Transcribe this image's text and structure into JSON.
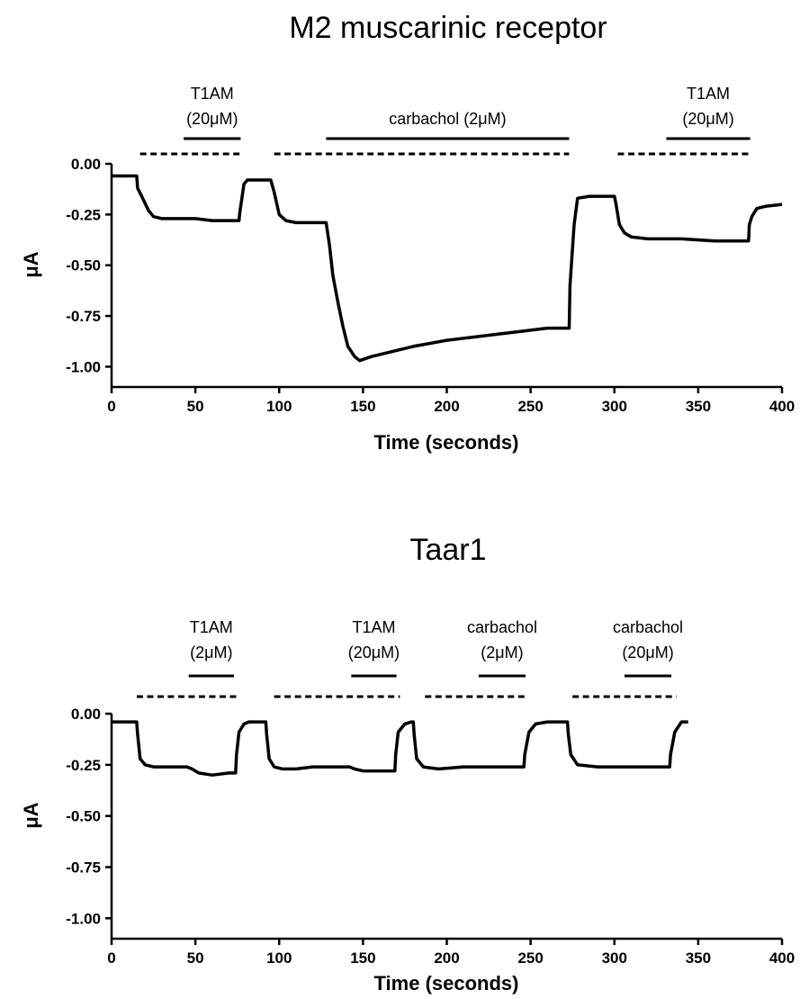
{
  "chart_data": [
    {
      "type": "line",
      "title": "M2 muscarinic receptor",
      "xlabel": "Time (seconds)",
      "ylabel": "μA",
      "xlim": [
        0,
        400
      ],
      "ylim": [
        -1.1,
        0.0
      ],
      "xticks": [
        "0",
        "50",
        "100",
        "150",
        "200",
        "250",
        "300",
        "350",
        "400"
      ],
      "yticks": [
        "0.00",
        "-0.25",
        "-0.50",
        "-0.75",
        "-1.00"
      ],
      "grid": false,
      "annotations": [
        {
          "line1": "T1AM",
          "line2": "(20μM)",
          "dashed": [
            17,
            77
          ],
          "solid": [
            43,
            77
          ]
        },
        {
          "line1": "carbachol (2μM)",
          "line2": "",
          "dashed": [
            97,
            273
          ],
          "solid": [
            128,
            273
          ]
        },
        {
          "line1": "T1AM",
          "line2": "(20μM)",
          "dashed": [
            302,
            381
          ],
          "solid": [
            331,
            381
          ]
        }
      ],
      "series": [
        {
          "x": [
            0,
            15,
            15.5,
            18,
            22,
            25,
            30,
            40,
            50,
            60,
            70,
            76,
            76.5,
            79,
            81,
            85,
            95,
            97,
            100,
            104,
            110,
            120,
            128,
            130,
            132,
            135,
            138,
            141,
            145,
            148,
            155,
            165,
            180,
            200,
            220,
            240,
            260,
            273,
            273.5,
            276,
            278,
            285,
            299,
            300,
            301,
            303,
            306,
            310,
            320,
            340,
            360,
            375,
            380,
            380.5,
            382,
            385,
            390,
            400
          ],
          "y": [
            -0.06,
            -0.06,
            -0.12,
            -0.16,
            -0.23,
            -0.26,
            -0.27,
            -0.27,
            -0.27,
            -0.28,
            -0.28,
            -0.28,
            -0.24,
            -0.1,
            -0.08,
            -0.08,
            -0.08,
            -0.14,
            -0.25,
            -0.28,
            -0.29,
            -0.29,
            -0.29,
            -0.4,
            -0.55,
            -0.68,
            -0.8,
            -0.9,
            -0.95,
            -0.97,
            -0.95,
            -0.93,
            -0.9,
            -0.87,
            -0.85,
            -0.83,
            -0.81,
            -0.81,
            -0.6,
            -0.3,
            -0.17,
            -0.16,
            -0.16,
            -0.16,
            -0.2,
            -0.3,
            -0.34,
            -0.36,
            -0.37,
            -0.37,
            -0.38,
            -0.38,
            -0.38,
            -0.3,
            -0.26,
            -0.22,
            -0.21,
            -0.2
          ]
        }
      ]
    },
    {
      "type": "line",
      "title": "Taar1",
      "xlabel": "Time (seconds)",
      "ylabel": "μA",
      "xlim": [
        0,
        400
      ],
      "ylim": [
        -1.1,
        0.0
      ],
      "xticks": [
        "0",
        "50",
        "100",
        "150",
        "200",
        "250",
        "300",
        "350",
        "400"
      ],
      "yticks": [
        "0.00",
        "-0.25",
        "-0.50",
        "-0.75",
        "-1.00"
      ],
      "grid": false,
      "annotations": [
        {
          "line1": "T1AM",
          "line2": "(2μM)",
          "dashed": [
            15,
            76
          ],
          "solid": [
            46,
            73
          ]
        },
        {
          "line1": "T1AM",
          "line2": "(20μM)",
          "dashed": [
            97,
            172
          ],
          "solid": [
            143,
            170
          ]
        },
        {
          "line1": "carbachol",
          "line2": "(2μM)",
          "dashed": [
            187,
            248
          ],
          "solid": [
            219,
            247
          ]
        },
        {
          "line1": "carbachol",
          "line2": "(20μM)",
          "dashed": [
            275,
            337
          ],
          "solid": [
            306,
            334
          ]
        }
      ],
      "series": [
        {
          "x": [
            0,
            15,
            15.5,
            17,
            20,
            25,
            35,
            45,
            48,
            52,
            60,
            70,
            74,
            74.5,
            76,
            79,
            82,
            90,
            92,
            92.5,
            94,
            97,
            102,
            110,
            120,
            130,
            142,
            145,
            150,
            160,
            169,
            169.5,
            171,
            175,
            179,
            180,
            180.5,
            182,
            186,
            195,
            210,
            230,
            246,
            246.5,
            249,
            253,
            260,
            270,
            272,
            272.5,
            274,
            278,
            290,
            300,
            320,
            333,
            333.5,
            336,
            340,
            344
          ],
          "y": [
            -0.04,
            -0.04,
            -0.1,
            -0.22,
            -0.25,
            -0.26,
            -0.26,
            -0.26,
            -0.27,
            -0.29,
            -0.3,
            -0.29,
            -0.29,
            -0.2,
            -0.09,
            -0.05,
            -0.04,
            -0.04,
            -0.04,
            -0.1,
            -0.22,
            -0.26,
            -0.27,
            -0.27,
            -0.26,
            -0.26,
            -0.26,
            -0.27,
            -0.28,
            -0.28,
            -0.28,
            -0.2,
            -0.09,
            -0.05,
            -0.04,
            -0.04,
            -0.1,
            -0.22,
            -0.26,
            -0.27,
            -0.26,
            -0.26,
            -0.26,
            -0.2,
            -0.09,
            -0.05,
            -0.04,
            -0.04,
            -0.04,
            -0.1,
            -0.2,
            -0.25,
            -0.26,
            -0.26,
            -0.26,
            -0.26,
            -0.2,
            -0.09,
            -0.04,
            -0.04
          ]
        }
      ]
    }
  ]
}
